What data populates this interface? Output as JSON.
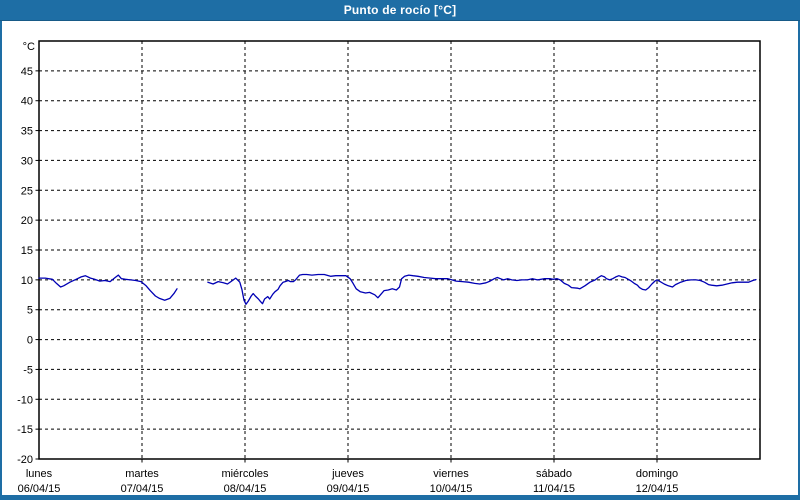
{
  "window": {
    "title": "Punto de rocío [°C]"
  },
  "colors": {
    "frame": "#1E6EA5",
    "titlebar_text": "#FFFFFF",
    "plot_background": "#FFFFFF",
    "grid": "#000000",
    "axis_text": "#000000",
    "series_line": "#0000B4"
  },
  "chart_data": {
    "type": "line",
    "title": "Punto de rocío [°C]",
    "legend": "none",
    "grid": "dashed",
    "y_axis": {
      "unit": "°C",
      "min": -20,
      "max": 50,
      "tick_step": 5,
      "tick_labels": [
        45,
        40,
        35,
        30,
        25,
        20,
        15,
        10,
        5,
        0,
        -5,
        -10,
        -15,
        -20
      ]
    },
    "x_axis": {
      "unit": "day",
      "span_days": 7,
      "days": [
        {
          "name": "lunes",
          "date": "06/04/15"
        },
        {
          "name": "martes",
          "date": "07/04/15"
        },
        {
          "name": "miércoles",
          "date": "08/04/15"
        },
        {
          "name": "jueves",
          "date": "09/04/15"
        },
        {
          "name": "viernes",
          "date": "10/04/15"
        },
        {
          "name": "sábado",
          "date": "11/04/15"
        },
        {
          "name": "domingo",
          "date": "12/04/15"
        }
      ]
    },
    "series": [
      {
        "name": "Punto de rocío",
        "color": "#0000B4",
        "unit": "°C",
        "x_unit": "days_since_monday_00h",
        "segments": [
          [
            [
              0.0,
              10.3
            ],
            [
              0.06,
              10.3
            ],
            [
              0.13,
              10.1
            ],
            [
              0.17,
              9.4
            ],
            [
              0.21,
              8.8
            ],
            [
              0.24,
              9.0
            ],
            [
              0.3,
              9.6
            ],
            [
              0.36,
              10.1
            ],
            [
              0.41,
              10.5
            ],
            [
              0.45,
              10.7
            ],
            [
              0.5,
              10.3
            ],
            [
              0.54,
              10.1
            ],
            [
              0.59,
              9.8
            ],
            [
              0.64,
              9.9
            ],
            [
              0.69,
              9.7
            ],
            [
              0.74,
              10.4
            ],
            [
              0.77,
              10.8
            ],
            [
              0.8,
              10.2
            ],
            [
              0.84,
              10.1
            ],
            [
              0.89,
              10.0
            ],
            [
              0.94,
              9.9
            ],
            [
              0.99,
              9.7
            ],
            [
              1.04,
              9.0
            ],
            [
              1.08,
              8.2
            ],
            [
              1.13,
              7.3
            ],
            [
              1.17,
              6.9
            ],
            [
              1.22,
              6.6
            ],
            [
              1.27,
              6.9
            ],
            [
              1.31,
              7.7
            ],
            [
              1.34,
              8.5
            ]
          ],
          [
            [
              1.64,
              9.6
            ],
            [
              1.69,
              9.3
            ],
            [
              1.74,
              9.7
            ],
            [
              1.79,
              9.5
            ],
            [
              1.83,
              9.3
            ],
            [
              1.87,
              9.8
            ],
            [
              1.91,
              10.3
            ],
            [
              1.95,
              9.6
            ],
            [
              1.97,
              8.4
            ],
            [
              1.99,
              6.6
            ],
            [
              2.01,
              5.9
            ],
            [
              2.03,
              6.4
            ],
            [
              2.06,
              7.3
            ],
            [
              2.08,
              7.7
            ],
            [
              2.1,
              7.3
            ],
            [
              2.13,
              6.8
            ],
            [
              2.15,
              6.4
            ],
            [
              2.17,
              6.0
            ],
            [
              2.19,
              6.8
            ],
            [
              2.22,
              7.2
            ],
            [
              2.24,
              6.8
            ],
            [
              2.27,
              7.6
            ],
            [
              2.29,
              8.0
            ],
            [
              2.32,
              8.4
            ],
            [
              2.34,
              9.0
            ],
            [
              2.37,
              9.6
            ],
            [
              2.39,
              9.7
            ],
            [
              2.42,
              9.9
            ],
            [
              2.44,
              9.7
            ],
            [
              2.47,
              9.7
            ],
            [
              2.49,
              10.0
            ],
            [
              2.51,
              10.4
            ],
            [
              2.53,
              10.8
            ],
            [
              2.56,
              10.9
            ],
            [
              2.6,
              10.9
            ],
            [
              2.65,
              10.8
            ],
            [
              2.71,
              10.9
            ],
            [
              2.77,
              10.9
            ],
            [
              2.83,
              10.6
            ],
            [
              2.88,
              10.7
            ],
            [
              2.93,
              10.7
            ],
            [
              2.98,
              10.7
            ],
            [
              3.02,
              10.2
            ],
            [
              3.05,
              9.4
            ],
            [
              3.08,
              8.5
            ],
            [
              3.12,
              8.0
            ],
            [
              3.17,
              7.8
            ],
            [
              3.21,
              7.9
            ],
            [
              3.26,
              7.5
            ],
            [
              3.29,
              7.0
            ],
            [
              3.32,
              7.6
            ],
            [
              3.35,
              8.2
            ],
            [
              3.39,
              8.3
            ],
            [
              3.43,
              8.5
            ],
            [
              3.47,
              8.3
            ],
            [
              3.5,
              8.8
            ],
            [
              3.52,
              10.2
            ],
            [
              3.55,
              10.6
            ],
            [
              3.59,
              10.8
            ],
            [
              3.63,
              10.7
            ],
            [
              3.68,
              10.6
            ],
            [
              3.74,
              10.4
            ],
            [
              3.8,
              10.3
            ],
            [
              3.85,
              10.2
            ],
            [
              3.91,
              10.2
            ],
            [
              3.97,
              10.2
            ],
            [
              4.01,
              10.0
            ],
            [
              4.05,
              9.8
            ],
            [
              4.11,
              9.7
            ],
            [
              4.17,
              9.6
            ],
            [
              4.23,
              9.4
            ],
            [
              4.28,
              9.3
            ],
            [
              4.34,
              9.5
            ],
            [
              4.38,
              9.8
            ],
            [
              4.42,
              10.2
            ],
            [
              4.45,
              10.4
            ],
            [
              4.48,
              10.2
            ],
            [
              4.51,
              10.0
            ],
            [
              4.55,
              10.2
            ],
            [
              4.59,
              10.0
            ],
            [
              4.64,
              9.9
            ],
            [
              4.69,
              10.0
            ],
            [
              4.74,
              10.0
            ],
            [
              4.79,
              10.2
            ],
            [
              4.84,
              10.0
            ],
            [
              4.91,
              10.2
            ],
            [
              4.96,
              10.2
            ],
            [
              4.99,
              10.1
            ],
            [
              5.03,
              10.2
            ],
            [
              5.06,
              10.0
            ],
            [
              5.1,
              9.4
            ],
            [
              5.14,
              9.1
            ],
            [
              5.17,
              8.7
            ],
            [
              5.23,
              8.6
            ],
            [
              5.25,
              8.5
            ],
            [
              5.3,
              9.0
            ],
            [
              5.35,
              9.6
            ],
            [
              5.4,
              10.0
            ],
            [
              5.43,
              10.4
            ],
            [
              5.46,
              10.7
            ],
            [
              5.49,
              10.5
            ],
            [
              5.51,
              10.2
            ],
            [
              5.54,
              10.0
            ],
            [
              5.57,
              10.2
            ],
            [
              5.6,
              10.5
            ],
            [
              5.63,
              10.7
            ],
            [
              5.66,
              10.5
            ],
            [
              5.69,
              10.4
            ],
            [
              5.72,
              10.1
            ],
            [
              5.75,
              9.8
            ],
            [
              5.78,
              9.4
            ],
            [
              5.81,
              9.1
            ],
            [
              5.83,
              8.7
            ],
            [
              5.86,
              8.4
            ],
            [
              5.89,
              8.3
            ],
            [
              5.92,
              8.7
            ],
            [
              5.95,
              9.3
            ],
            [
              5.98,
              9.8
            ],
            [
              6.0,
              10.0
            ],
            [
              6.03,
              9.7
            ],
            [
              6.07,
              9.3
            ],
            [
              6.11,
              9.0
            ],
            [
              6.15,
              8.8
            ],
            [
              6.18,
              9.2
            ],
            [
              6.23,
              9.6
            ],
            [
              6.28,
              9.9
            ],
            [
              6.33,
              10.0
            ],
            [
              6.38,
              10.0
            ],
            [
              6.42,
              9.9
            ],
            [
              6.46,
              9.6
            ],
            [
              6.5,
              9.2
            ],
            [
              6.53,
              9.1
            ],
            [
              6.58,
              9.0
            ],
            [
              6.63,
              9.1
            ],
            [
              6.68,
              9.3
            ],
            [
              6.73,
              9.5
            ],
            [
              6.78,
              9.6
            ],
            [
              6.83,
              9.6
            ],
            [
              6.89,
              9.6
            ],
            [
              6.93,
              9.9
            ],
            [
              6.96,
              10.05
            ]
          ]
        ]
      }
    ]
  }
}
